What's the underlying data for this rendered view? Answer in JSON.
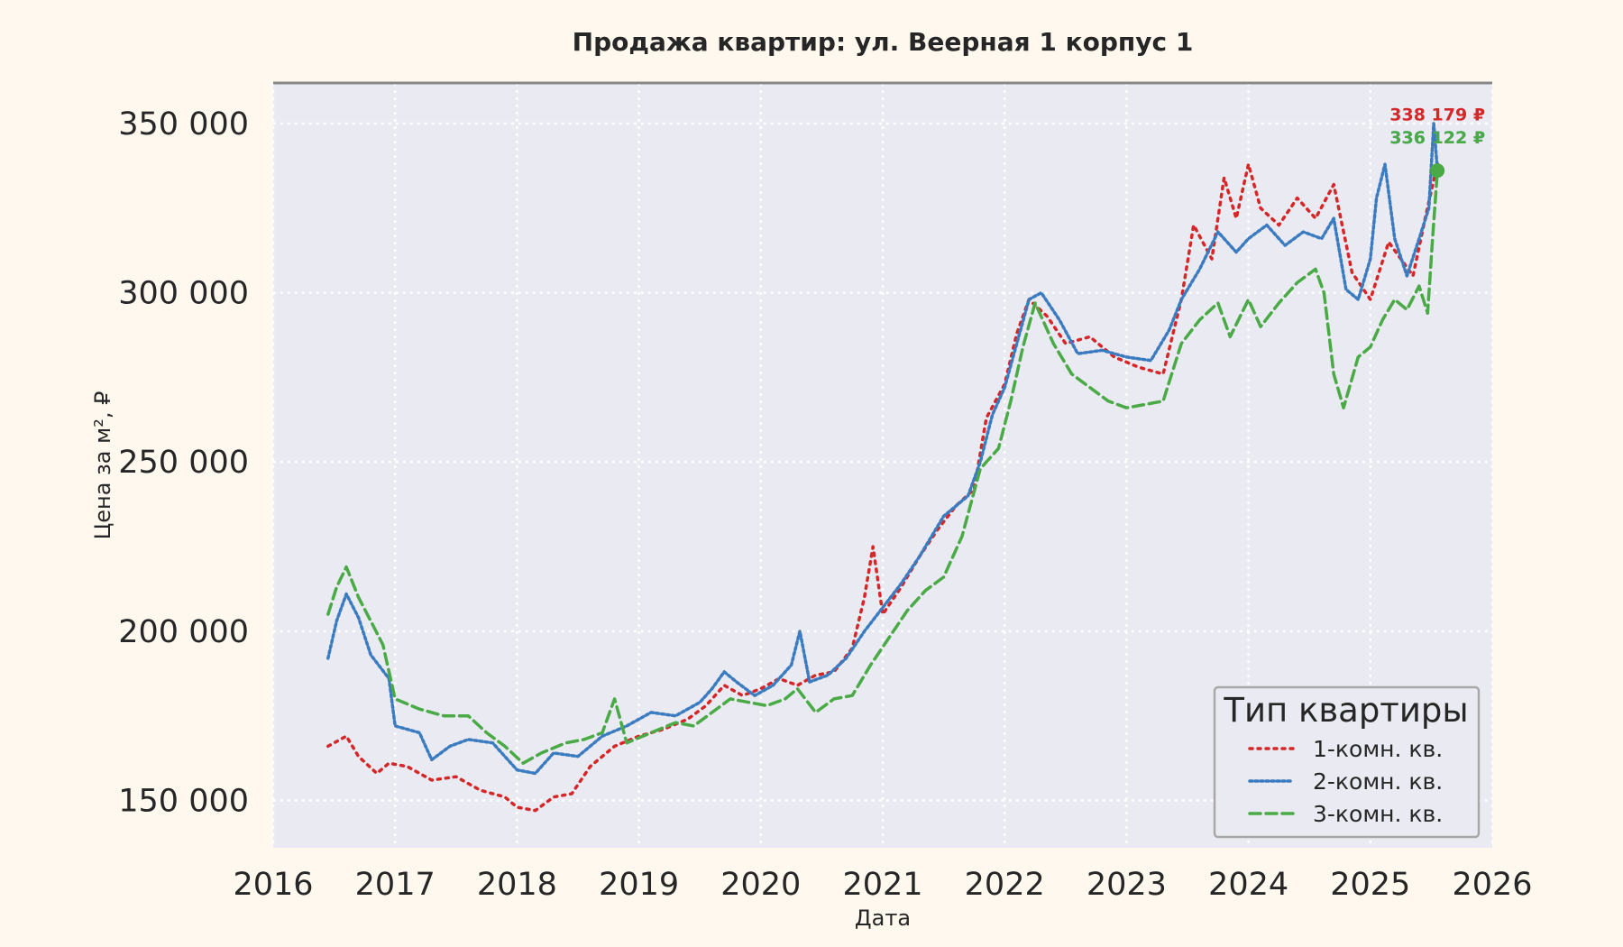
{
  "chart_data": {
    "type": "line",
    "title": "Продажа квартир: ул. Веерная 1 корпус 1",
    "xlabel": "Дата",
    "ylabel": "Цена за м², ₽",
    "xlim": [
      2016,
      2026
    ],
    "ylim": [
      136000,
      362000
    ],
    "x_ticks": [
      "2016",
      "2017",
      "2018",
      "2019",
      "2020",
      "2021",
      "2022",
      "2023",
      "2024",
      "2025",
      "2026"
    ],
    "y_ticks": [
      150000,
      200000,
      250000,
      300000,
      350000
    ],
    "y_tick_labels": [
      "150 000",
      "200 000",
      "250 000",
      "300 000",
      "350 000"
    ],
    "grid": true,
    "legend": {
      "title": "Тип квартиры",
      "placement": "bottom-right"
    },
    "colors": {
      "background": "#fff8ee",
      "plot_background": "#eaeaf2",
      "grid": "#ffffff"
    },
    "series": [
      {
        "name": "1-комн. кв.",
        "color": "#d62728",
        "dash": "dotted",
        "end_label": "338 179 ₽",
        "points": [
          [
            2016.45,
            166000
          ],
          [
            2016.6,
            169000
          ],
          [
            2016.7,
            163000
          ],
          [
            2016.85,
            158000
          ],
          [
            2016.95,
            161000
          ],
          [
            2017.1,
            160000
          ],
          [
            2017.3,
            156000
          ],
          [
            2017.5,
            157000
          ],
          [
            2017.7,
            153000
          ],
          [
            2017.9,
            151000
          ],
          [
            2018.0,
            148000
          ],
          [
            2018.15,
            147000
          ],
          [
            2018.3,
            151000
          ],
          [
            2018.45,
            152000
          ],
          [
            2018.6,
            160000
          ],
          [
            2018.8,
            166000
          ],
          [
            2019.0,
            169000
          ],
          [
            2019.2,
            171000
          ],
          [
            2019.4,
            174000
          ],
          [
            2019.55,
            178000
          ],
          [
            2019.7,
            184000
          ],
          [
            2019.85,
            181000
          ],
          [
            2020.0,
            183000
          ],
          [
            2020.15,
            186000
          ],
          [
            2020.3,
            184000
          ],
          [
            2020.45,
            187000
          ],
          [
            2020.6,
            188000
          ],
          [
            2020.75,
            195000
          ],
          [
            2020.85,
            210000
          ],
          [
            2020.92,
            225000
          ],
          [
            2021.0,
            205000
          ],
          [
            2021.15,
            213000
          ],
          [
            2021.3,
            222000
          ],
          [
            2021.45,
            230000
          ],
          [
            2021.6,
            237000
          ],
          [
            2021.75,
            242000
          ],
          [
            2021.85,
            263000
          ],
          [
            2022.0,
            273000
          ],
          [
            2022.1,
            288000
          ],
          [
            2022.2,
            298000
          ],
          [
            2022.35,
            293000
          ],
          [
            2022.5,
            285000
          ],
          [
            2022.7,
            287000
          ],
          [
            2022.9,
            281000
          ],
          [
            2023.1,
            278000
          ],
          [
            2023.3,
            276000
          ],
          [
            2023.45,
            298000
          ],
          [
            2023.55,
            320000
          ],
          [
            2023.7,
            310000
          ],
          [
            2023.8,
            334000
          ],
          [
            2023.9,
            322000
          ],
          [
            2024.0,
            338000
          ],
          [
            2024.1,
            325000
          ],
          [
            2024.25,
            320000
          ],
          [
            2024.4,
            328000
          ],
          [
            2024.55,
            322000
          ],
          [
            2024.7,
            332000
          ],
          [
            2024.85,
            306000
          ],
          [
            2025.0,
            298000
          ],
          [
            2025.15,
            315000
          ],
          [
            2025.25,
            310000
          ],
          [
            2025.35,
            305000
          ],
          [
            2025.45,
            322000
          ],
          [
            2025.55,
            338179
          ]
        ]
      },
      {
        "name": "2-комн. кв.",
        "color": "#3b7bbf",
        "dash": "densely-dotted",
        "end_label": "336 122 ₽",
        "points": [
          [
            2016.45,
            192000
          ],
          [
            2016.52,
            203000
          ],
          [
            2016.6,
            211000
          ],
          [
            2016.7,
            204000
          ],
          [
            2016.8,
            193000
          ],
          [
            2016.95,
            186000
          ],
          [
            2017.0,
            172000
          ],
          [
            2017.2,
            170000
          ],
          [
            2017.3,
            162000
          ],
          [
            2017.45,
            166000
          ],
          [
            2017.6,
            168000
          ],
          [
            2017.8,
            167000
          ],
          [
            2018.0,
            159000
          ],
          [
            2018.15,
            158000
          ],
          [
            2018.3,
            164000
          ],
          [
            2018.5,
            163000
          ],
          [
            2018.7,
            169000
          ],
          [
            2018.9,
            172000
          ],
          [
            2019.1,
            176000
          ],
          [
            2019.3,
            175000
          ],
          [
            2019.5,
            179000
          ],
          [
            2019.6,
            183000
          ],
          [
            2019.7,
            188000
          ],
          [
            2019.8,
            185000
          ],
          [
            2019.95,
            181000
          ],
          [
            2020.1,
            184000
          ],
          [
            2020.25,
            190000
          ],
          [
            2020.32,
            200000
          ],
          [
            2020.4,
            185000
          ],
          [
            2020.55,
            187000
          ],
          [
            2020.7,
            192000
          ],
          [
            2020.85,
            200000
          ],
          [
            2021.0,
            207000
          ],
          [
            2021.15,
            214000
          ],
          [
            2021.3,
            222000
          ],
          [
            2021.5,
            234000
          ],
          [
            2021.7,
            240000
          ],
          [
            2021.8,
            250000
          ],
          [
            2021.9,
            264000
          ],
          [
            2022.0,
            272000
          ],
          [
            2022.1,
            285000
          ],
          [
            2022.2,
            298000
          ],
          [
            2022.3,
            300000
          ],
          [
            2022.45,
            292000
          ],
          [
            2022.6,
            282000
          ],
          [
            2022.8,
            283000
          ],
          [
            2023.0,
            281000
          ],
          [
            2023.2,
            280000
          ],
          [
            2023.35,
            289000
          ],
          [
            2023.45,
            298000
          ],
          [
            2023.6,
            307000
          ],
          [
            2023.75,
            318000
          ],
          [
            2023.9,
            312000
          ],
          [
            2024.0,
            316000
          ],
          [
            2024.15,
            320000
          ],
          [
            2024.3,
            314000
          ],
          [
            2024.45,
            318000
          ],
          [
            2024.6,
            316000
          ],
          [
            2024.7,
            322000
          ],
          [
            2024.8,
            301000
          ],
          [
            2024.9,
            298000
          ],
          [
            2025.0,
            310000
          ],
          [
            2025.05,
            328000
          ],
          [
            2025.12,
            338000
          ],
          [
            2025.2,
            316000
          ],
          [
            2025.3,
            305000
          ],
          [
            2025.4,
            316000
          ],
          [
            2025.48,
            325000
          ],
          [
            2025.52,
            350000
          ],
          [
            2025.55,
            336122
          ]
        ]
      },
      {
        "name": "3-комн. кв.",
        "color": "#4aaa46",
        "dash": "dashed",
        "end_label": "336 122 ₽",
        "points": [
          [
            2016.45,
            205000
          ],
          [
            2016.52,
            213000
          ],
          [
            2016.6,
            219000
          ],
          [
            2016.7,
            210000
          ],
          [
            2016.8,
            203000
          ],
          [
            2016.9,
            196000
          ],
          [
            2017.0,
            180000
          ],
          [
            2017.2,
            177000
          ],
          [
            2017.4,
            175000
          ],
          [
            2017.6,
            175000
          ],
          [
            2017.75,
            170000
          ],
          [
            2017.9,
            166000
          ],
          [
            2018.05,
            161000
          ],
          [
            2018.2,
            164000
          ],
          [
            2018.4,
            167000
          ],
          [
            2018.55,
            168000
          ],
          [
            2018.7,
            170000
          ],
          [
            2018.8,
            180000
          ],
          [
            2018.9,
            167000
          ],
          [
            2019.1,
            170000
          ],
          [
            2019.3,
            173000
          ],
          [
            2019.45,
            172000
          ],
          [
            2019.6,
            176000
          ],
          [
            2019.75,
            180000
          ],
          [
            2019.9,
            179000
          ],
          [
            2020.05,
            178000
          ],
          [
            2020.2,
            180000
          ],
          [
            2020.3,
            183000
          ],
          [
            2020.45,
            176000
          ],
          [
            2020.6,
            180000
          ],
          [
            2020.75,
            181000
          ],
          [
            2020.9,
            190000
          ],
          [
            2021.05,
            198000
          ],
          [
            2021.2,
            206000
          ],
          [
            2021.35,
            212000
          ],
          [
            2021.5,
            216000
          ],
          [
            2021.65,
            228000
          ],
          [
            2021.8,
            248000
          ],
          [
            2021.95,
            254000
          ],
          [
            2022.05,
            268000
          ],
          [
            2022.15,
            284000
          ],
          [
            2022.25,
            297000
          ],
          [
            2022.4,
            285000
          ],
          [
            2022.55,
            276000
          ],
          [
            2022.7,
            272000
          ],
          [
            2022.85,
            268000
          ],
          [
            2023.0,
            266000
          ],
          [
            2023.15,
            267000
          ],
          [
            2023.3,
            268000
          ],
          [
            2023.45,
            285000
          ],
          [
            2023.6,
            292000
          ],
          [
            2023.75,
            297000
          ],
          [
            2023.85,
            287000
          ],
          [
            2024.0,
            298000
          ],
          [
            2024.1,
            290000
          ],
          [
            2024.25,
            297000
          ],
          [
            2024.4,
            303000
          ],
          [
            2024.55,
            307000
          ],
          [
            2024.62,
            300000
          ],
          [
            2024.7,
            276000
          ],
          [
            2024.78,
            266000
          ],
          [
            2024.9,
            281000
          ],
          [
            2025.0,
            284000
          ],
          [
            2025.1,
            292000
          ],
          [
            2025.2,
            298000
          ],
          [
            2025.3,
            295000
          ],
          [
            2025.4,
            302000
          ],
          [
            2025.47,
            294000
          ],
          [
            2025.51,
            316000
          ],
          [
            2025.55,
            336122
          ]
        ]
      }
    ]
  }
}
